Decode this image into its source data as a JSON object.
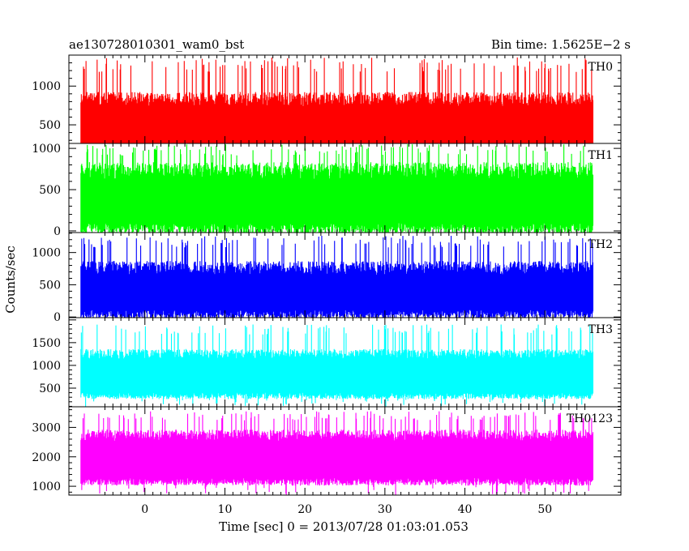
{
  "header": {
    "title": "ae130728010301_wam0_bst",
    "bin_time": "Bin time: 1.5625E−2 s"
  },
  "chart_data": {
    "type": "line",
    "title": "ae130728010301_wam0_bst",
    "subtitle": "Bin time: 1.5625E−2 s",
    "xlabel": "Time [sec] 0 = 2013/07/28 01:03:01.053",
    "ylabel": "Counts/sec",
    "xlim": [
      -9.5,
      59.5
    ],
    "x_ticks": [
      0,
      10,
      20,
      30,
      40,
      50
    ],
    "data_x_range": [
      -8,
      56
    ],
    "grid": false,
    "panels": [
      {
        "name": "TH0",
        "color": "#ff0000",
        "ylim": [
          260,
          1400
        ],
        "y_ticks": [
          500,
          1000
        ],
        "base": 150,
        "mid": 620,
        "noise": 210,
        "spike_max": 1370,
        "seed": 11
      },
      {
        "name": "TH1",
        "color": "#00ff00",
        "ylim": [
          -20,
          1060
        ],
        "y_ticks": [
          0,
          500,
          1000
        ],
        "base": 25,
        "mid": 500,
        "noise": 230,
        "spike_max": 1050,
        "seed": 23
      },
      {
        "name": "TH2",
        "color": "#0000ff",
        "ylim": [
          -10,
          1310
        ],
        "y_ticks": [
          0,
          500,
          1000
        ],
        "base": 40,
        "mid": 520,
        "noise": 240,
        "spike_max": 1260,
        "seed": 37
      },
      {
        "name": "TH3",
        "color": "#00ffff",
        "ylim": [
          90,
          2050
        ],
        "y_ticks": [
          500,
          1000,
          1500
        ],
        "base": 330,
        "mid": 1010,
        "noise": 240,
        "spike_max": 1900,
        "seed": 41
      },
      {
        "name": "TH0123",
        "color": "#ff00ff",
        "ylim": [
          700,
          3700
        ],
        "y_ticks": [
          1000,
          2000,
          3000
        ],
        "base": 1150,
        "mid": 2300,
        "noise": 430,
        "spike_max": 3550,
        "seed": 53
      }
    ]
  }
}
